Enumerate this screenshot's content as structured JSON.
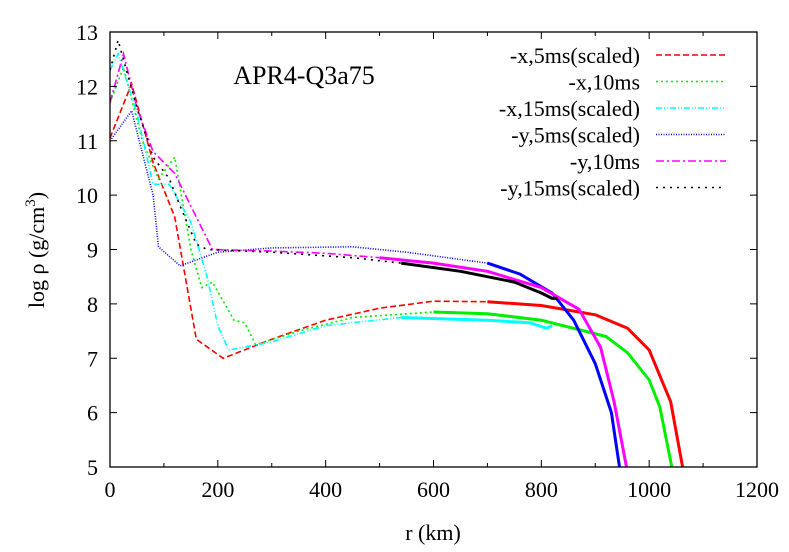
{
  "chart_data": {
    "type": "line",
    "title": "APR4-Q3a75",
    "xlabel": "r (km)",
    "ylabel": "log ρ (g/cm³)",
    "ylabel_parts": {
      "main": "log ρ (g/cm",
      "sup": "3",
      "tail": ")"
    },
    "xlim": [
      0,
      1200
    ],
    "ylim": [
      5,
      13
    ],
    "xticks": [
      0,
      200,
      400,
      600,
      800,
      1000,
      1200
    ],
    "yticks": [
      5,
      6,
      7,
      8,
      9,
      10,
      11,
      12,
      13
    ],
    "xtick_labels": [
      "0",
      "200",
      "400",
      "600",
      "800",
      "1000",
      "1200"
    ],
    "ytick_labels": [
      "5",
      "6",
      "7",
      "8",
      "9",
      "10",
      "11",
      "12",
      "13"
    ],
    "grid": false,
    "legend_position": "upper right",
    "series": [
      {
        "name": "-x,5ms(scaled)",
        "color": "#ff0000",
        "dash": "6,3",
        "x_dashed": [
          0,
          40,
          80,
          120,
          160,
          210,
          300,
          400,
          500,
          600,
          700
        ],
        "y_dashed": [
          11.05,
          12.05,
          10.6,
          9.6,
          7.35,
          7.0,
          7.35,
          7.7,
          7.92,
          8.05,
          8.04
        ],
        "x_solid": [
          700,
          800,
          900,
          960,
          1000,
          1040,
          1062
        ],
        "y_solid": [
          8.04,
          7.97,
          7.8,
          7.55,
          7.15,
          6.2,
          5.0
        ]
      },
      {
        "name": "-x,10ms",
        "color": "#00ee00",
        "dash": "2,3",
        "x_dashed": [
          0,
          25,
          60,
          90,
          120,
          150,
          170,
          190,
          230,
          250,
          270,
          350,
          450,
          600
        ],
        "y_dashed": [
          11.7,
          12.35,
          11.0,
          10.3,
          10.7,
          9.0,
          8.3,
          8.4,
          7.7,
          7.65,
          7.25,
          7.5,
          7.75,
          7.85
        ],
        "x_solid": [
          600,
          700,
          800,
          880,
          920,
          960,
          1000,
          1020,
          1042
        ],
        "y_solid": [
          7.85,
          7.82,
          7.7,
          7.5,
          7.4,
          7.1,
          6.6,
          6.1,
          5.0
        ]
      },
      {
        "name": "-x,15ms(scaled)",
        "color": "#00ffff",
        "dash": "6,2,1,2,1,2",
        "x_dashed": [
          0,
          15,
          50,
          80,
          110,
          150,
          180,
          200,
          220,
          300,
          400,
          540
        ],
        "y_dashed": [
          12.3,
          12.6,
          11.5,
          10.2,
          10.2,
          9.5,
          8.5,
          7.6,
          7.15,
          7.3,
          7.6,
          7.75
        ],
        "x_solid": [
          540,
          700,
          780,
          810,
          820
        ],
        "y_solid": [
          7.75,
          7.7,
          7.65,
          7.55,
          7.6
        ]
      },
      {
        "name": "-y,5ms(scaled)",
        "color": "#0000ff",
        "dash": "1,1.5",
        "x_dashed": [
          0,
          40,
          80,
          90,
          130,
          200,
          300,
          450,
          550,
          700
        ],
        "y_dashed": [
          11.0,
          11.55,
          10.0,
          9.05,
          8.7,
          8.95,
          9.03,
          9.05,
          8.95,
          8.75
        ],
        "x_solid": [
          700,
          760,
          820,
          860,
          900,
          930,
          945
        ],
        "y_solid": [
          8.75,
          8.55,
          8.2,
          7.7,
          6.9,
          6.0,
          5.0
        ]
      },
      {
        "name": "-y,10ms",
        "color": "#ff00ff",
        "dash": "8,3,2,3",
        "x_dashed": [
          0,
          25,
          50,
          80,
          120,
          190,
          300,
          400,
          500
        ],
        "y_dashed": [
          11.7,
          12.6,
          11.6,
          10.8,
          10.4,
          9.0,
          8.97,
          8.93,
          8.85
        ],
        "x_solid": [
          500,
          600,
          700,
          800,
          870,
          910,
          935,
          958
        ],
        "y_solid": [
          8.85,
          8.75,
          8.6,
          8.3,
          7.9,
          7.2,
          6.2,
          5.0
        ]
      },
      {
        "name": "-y,15ms(scaled)",
        "color": "#000000",
        "dash": "2,5",
        "x_dashed": [
          0,
          15,
          50,
          80,
          110,
          130,
          160,
          180,
          300,
          450,
          540
        ],
        "y_dashed": [
          12.3,
          12.85,
          11.6,
          10.7,
          10.3,
          9.8,
          9.1,
          9.0,
          8.95,
          8.85,
          8.75
        ],
        "x_solid": [
          540,
          650,
          750,
          800,
          820,
          830
        ],
        "y_solid": [
          8.75,
          8.6,
          8.4,
          8.2,
          8.1,
          8.1
        ]
      }
    ]
  }
}
